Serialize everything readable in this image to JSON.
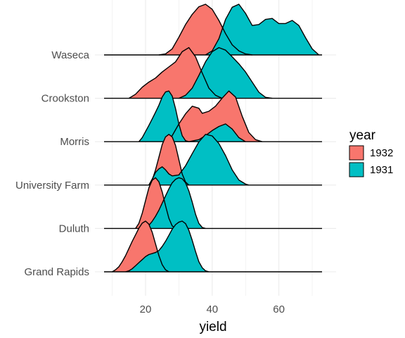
{
  "chart_data": {
    "type": "ridgeline",
    "xlabel": "yield",
    "ylabel": "",
    "xlim": [
      7.5,
      75
    ],
    "x_ticks": [
      20,
      40,
      60
    ],
    "grid": true,
    "legend": {
      "title": "year",
      "placement": "right",
      "entries": [
        {
          "label": "1932",
          "color": "#F8766D"
        },
        {
          "label": "1931",
          "color": "#00BFC4"
        }
      ]
    },
    "categories": [
      "Waseca",
      "Crookston",
      "Morris",
      "University Farm",
      "Duluth",
      "Grand Rapids"
    ],
    "series": [
      {
        "name": "1932",
        "color": "#F8766D",
        "ridges": [
          {
            "category": "Waseca",
            "points": [
              [
                24,
                0
              ],
              [
                26,
                0.02
              ],
              [
                28,
                0.12
              ],
              [
                30,
                0.35
              ],
              [
                32,
                0.6
              ],
              [
                34,
                0.8
              ],
              [
                36,
                0.95
              ],
              [
                38,
                1.0
              ],
              [
                40,
                0.9
              ],
              [
                42,
                0.68
              ],
              [
                44,
                0.42
              ],
              [
                46,
                0.2
              ],
              [
                48,
                0.08
              ],
              [
                50,
                0.02
              ],
              [
                52,
                0
              ]
            ]
          },
          {
            "category": "Crookston",
            "points": [
              [
                15,
                0
              ],
              [
                17,
                0.08
              ],
              [
                19,
                0.22
              ],
              [
                21,
                0.32
              ],
              [
                23,
                0.4
              ],
              [
                25,
                0.52
              ],
              [
                27,
                0.62
              ],
              [
                29,
                0.72
              ],
              [
                31,
                0.92
              ],
              [
                33,
                1.0
              ],
              [
                35,
                0.82
              ],
              [
                37,
                0.5
              ],
              [
                39,
                0.2
              ],
              [
                41,
                0.06
              ],
              [
                43,
                0
              ]
            ]
          },
          {
            "category": "Morris",
            "points": [
              [
                26,
                0
              ],
              [
                28,
                0.12
              ],
              [
                30,
                0.35
              ],
              [
                32,
                0.55
              ],
              [
                34,
                0.7
              ],
              [
                36,
                0.66
              ],
              [
                37,
                0.56
              ],
              [
                39,
                0.6
              ],
              [
                41,
                0.7
              ],
              [
                43,
                0.86
              ],
              [
                45,
                1.0
              ],
              [
                47,
                0.88
              ],
              [
                49,
                0.5
              ],
              [
                51,
                0.18
              ],
              [
                53,
                0.04
              ],
              [
                55,
                0
              ]
            ]
          },
          {
            "category": "University Farm",
            "points": [
              [
                21,
                0
              ],
              [
                22,
                0.1
              ],
              [
                23,
                0.3
              ],
              [
                24,
                0.55
              ],
              [
                25,
                0.8
              ],
              [
                26,
                0.95
              ],
              [
                27,
                1.0
              ],
              [
                28,
                0.95
              ],
              [
                29,
                0.78
              ],
              [
                30,
                0.5
              ],
              [
                31,
                0.22
              ],
              [
                32,
                0.06
              ],
              [
                33,
                0
              ]
            ]
          },
          {
            "category": "Duluth",
            "points": [
              [
                17,
                0
              ],
              [
                18,
                0.1
              ],
              [
                19,
                0.3
              ],
              [
                20,
                0.55
              ],
              [
                21,
                0.8
              ],
              [
                22,
                0.95
              ],
              [
                23,
                1.0
              ],
              [
                24,
                0.92
              ],
              [
                25,
                0.72
              ],
              [
                26,
                0.45
              ],
              [
                27,
                0.2
              ],
              [
                28,
                0.05
              ],
              [
                29,
                0
              ]
            ]
          },
          {
            "category": "Grand Rapids",
            "points": [
              [
                10,
                0
              ],
              [
                11,
                0.04
              ],
              [
                12,
                0.1
              ],
              [
                13,
                0.2
              ],
              [
                14,
                0.32
              ],
              [
                15,
                0.46
              ],
              [
                16,
                0.6
              ],
              [
                17,
                0.73
              ],
              [
                18,
                0.86
              ],
              [
                19,
                0.96
              ],
              [
                20,
                1.0
              ],
              [
                21,
                0.94
              ],
              [
                22,
                0.78
              ],
              [
                23,
                0.55
              ],
              [
                24,
                0.32
              ],
              [
                25,
                0.14
              ],
              [
                26,
                0.04
              ],
              [
                27,
                0
              ]
            ]
          }
        ]
      },
      {
        "name": "1931",
        "color": "#00BFC4",
        "ridges": [
          {
            "category": "Waseca",
            "points": [
              [
                38,
                0
              ],
              [
                40,
                0.08
              ],
              [
                42,
                0.32
              ],
              [
                44,
                0.7
              ],
              [
                46,
                0.94
              ],
              [
                48,
                1.0
              ],
              [
                50,
                0.82
              ],
              [
                52,
                0.58
              ],
              [
                54,
                0.6
              ],
              [
                56,
                0.7
              ],
              [
                58,
                0.72
              ],
              [
                60,
                0.62
              ],
              [
                62,
                0.62
              ],
              [
                64,
                0.68
              ],
              [
                66,
                0.58
              ],
              [
                68,
                0.34
              ],
              [
                70,
                0.12
              ],
              [
                72,
                0
              ]
            ]
          },
          {
            "category": "Crookston",
            "points": [
              [
                30,
                0
              ],
              [
                32,
                0.06
              ],
              [
                34,
                0.2
              ],
              [
                36,
                0.45
              ],
              [
                38,
                0.72
              ],
              [
                40,
                0.92
              ],
              [
                42,
                1.0
              ],
              [
                44,
                0.95
              ],
              [
                46,
                0.82
              ],
              [
                48,
                0.68
              ],
              [
                50,
                0.52
              ],
              [
                52,
                0.32
              ],
              [
                54,
                0.12
              ],
              [
                56,
                0.02
              ],
              [
                58,
                0
              ]
            ]
          },
          {
            "category": "Morris",
            "points": [
              [
                18,
                0
              ],
              [
                19,
                0.08
              ],
              [
                20,
                0.2
              ],
              [
                21,
                0.32
              ],
              [
                22,
                0.45
              ],
              [
                23,
                0.58
              ],
              [
                24,
                0.72
              ],
              [
                25,
                0.88
              ],
              [
                26,
                0.98
              ],
              [
                27,
                1.0
              ],
              [
                28,
                0.9
              ],
              [
                29,
                0.65
              ],
              [
                30,
                0.35
              ],
              [
                31,
                0.12
              ],
              [
                32,
                0.02
              ],
              [
                33,
                0
              ],
              [
                36,
                0.04
              ],
              [
                38,
                0.12
              ],
              [
                40,
                0.22
              ],
              [
                42,
                0.3
              ],
              [
                44,
                0.35
              ],
              [
                46,
                0.25
              ],
              [
                48,
                0.08
              ],
              [
                50,
                0
              ]
            ]
          },
          {
            "category": "University Farm",
            "points": [
              [
                21,
                0
              ],
              [
                22,
                0.12
              ],
              [
                23,
                0.25
              ],
              [
                24,
                0.32
              ],
              [
                25,
                0.36
              ],
              [
                26,
                0.3
              ],
              [
                27,
                0.22
              ],
              [
                28,
                0.18
              ],
              [
                30,
                0.2
              ],
              [
                32,
                0.38
              ],
              [
                34,
                0.62
              ],
              [
                36,
                0.85
              ],
              [
                38,
                1.0
              ],
              [
                40,
                0.97
              ],
              [
                42,
                0.82
              ],
              [
                44,
                0.58
              ],
              [
                46,
                0.3
              ],
              [
                48,
                0.1
              ],
              [
                50,
                0.02
              ],
              [
                51,
                0
              ]
            ]
          },
          {
            "category": "Duluth",
            "points": [
              [
                20,
                0
              ],
              [
                21,
                0.06
              ],
              [
                22,
                0.14
              ],
              [
                23,
                0.24
              ],
              [
                24,
                0.36
              ],
              [
                25,
                0.5
              ],
              [
                26,
                0.64
              ],
              [
                27,
                0.78
              ],
              [
                28,
                0.9
              ],
              [
                29,
                0.97
              ],
              [
                30,
                1.0
              ],
              [
                31,
                0.98
              ],
              [
                32,
                0.9
              ],
              [
                33,
                0.74
              ],
              [
                34,
                0.52
              ],
              [
                35,
                0.28
              ],
              [
                36,
                0.1
              ],
              [
                37,
                0.02
              ],
              [
                38,
                0
              ]
            ]
          },
          {
            "category": "Grand Rapids",
            "points": [
              [
                14,
                0
              ],
              [
                15,
                0.02
              ],
              [
                16,
                0.06
              ],
              [
                17,
                0.12
              ],
              [
                18,
                0.18
              ],
              [
                19,
                0.24
              ],
              [
                20,
                0.3
              ],
              [
                21,
                0.34
              ],
              [
                22,
                0.36
              ],
              [
                23,
                0.38
              ],
              [
                24,
                0.42
              ],
              [
                25,
                0.5
              ],
              [
                26,
                0.6
              ],
              [
                27,
                0.72
              ],
              [
                28,
                0.84
              ],
              [
                29,
                0.93
              ],
              [
                30,
                0.98
              ],
              [
                31,
                1.0
              ],
              [
                32,
                0.95
              ],
              [
                33,
                0.82
              ],
              [
                34,
                0.62
              ],
              [
                35,
                0.4
              ],
              [
                36,
                0.2
              ],
              [
                37,
                0.08
              ],
              [
                38,
                0.02
              ],
              [
                39,
                0
              ]
            ]
          }
        ]
      }
    ]
  }
}
